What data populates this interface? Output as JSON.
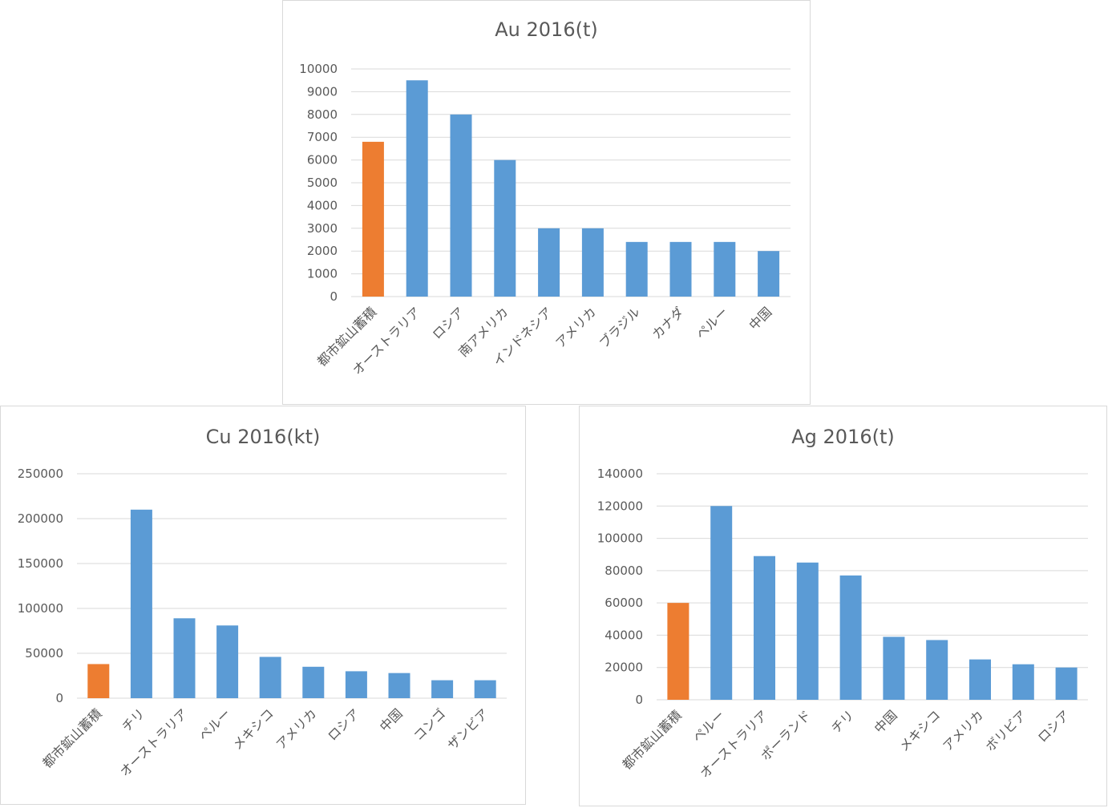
{
  "chart_data": [
    {
      "type": "bar",
      "title": "Au 2016(t)",
      "categories": [
        "都市鉱山蓄積",
        "オーストラリア",
        "ロシア",
        "南アメリカ",
        "インドネシア",
        "アメリカ",
        "ブラジル",
        "カナダ",
        "ペルー",
        "中国"
      ],
      "values": [
        6800,
        9500,
        8000,
        6000,
        3000,
        3000,
        2400,
        2400,
        2400,
        2000
      ],
      "ylim": [
        0,
        10000
      ],
      "yticks": [
        0,
        1000,
        2000,
        3000,
        4000,
        5000,
        6000,
        7000,
        8000,
        9000,
        10000
      ],
      "highlight_index": 0,
      "grid": true,
      "legend": "none"
    },
    {
      "type": "bar",
      "title": "Cu 2016(kt)",
      "categories": [
        "都市鉱山蓄積",
        "チリ",
        "オーストラリア",
        "ペルー",
        "メキシコ",
        "アメリカ",
        "ロシア",
        "中国",
        "コンゴ",
        "ザンビア"
      ],
      "values": [
        38000,
        210000,
        89000,
        81000,
        46000,
        35000,
        30000,
        28000,
        20000,
        20000
      ],
      "ylim": [
        0,
        250000
      ],
      "yticks": [
        0,
        50000,
        100000,
        150000,
        200000,
        250000
      ],
      "highlight_index": 0,
      "grid": true,
      "legend": "none"
    },
    {
      "type": "bar",
      "title": "Ag 2016(t)",
      "categories": [
        "都市鉱山蓄積",
        "ペルー",
        "オーストラリア",
        "ポーランド",
        "チリ",
        "中国",
        "メキシコ",
        "アメリカ",
        "ボリビア",
        "ロシア"
      ],
      "values": [
        60000,
        120000,
        89000,
        85000,
        77000,
        39000,
        37000,
        25000,
        22000,
        20000
      ],
      "ylim": [
        0,
        140000
      ],
      "yticks": [
        0,
        20000,
        40000,
        60000,
        80000,
        100000,
        120000,
        140000
      ],
      "highlight_index": 0,
      "grid": true,
      "legend": "none"
    }
  ],
  "colors": {
    "highlight": "#ED7D31",
    "bar": "#5B9BD5",
    "grid": "#D9D9D9",
    "text": "#595959"
  }
}
